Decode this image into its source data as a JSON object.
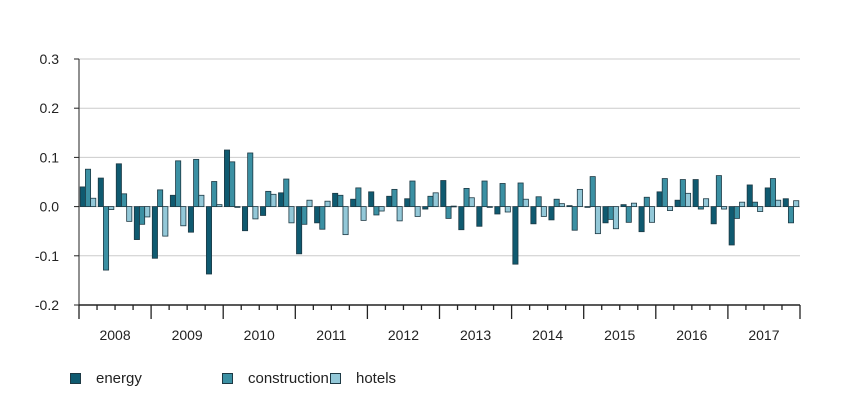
{
  "chart_data": {
    "type": "bar",
    "title": "",
    "xlabel": "",
    "ylabel": "",
    "ylim": [
      -0.2,
      0.3
    ],
    "yticks": [
      "0.3",
      "0.2",
      "0.1",
      "0.0",
      "-0.1",
      "-0.2"
    ],
    "ytick_values": [
      0.3,
      0.2,
      0.1,
      0.0,
      -0.1,
      -0.2
    ],
    "grid": "horizontal",
    "legend_position": "bottom-left",
    "year_labels": [
      "2008",
      "2009",
      "2010",
      "2011",
      "2012",
      "2013",
      "2014",
      "2015",
      "2016",
      "2017"
    ],
    "categories": [
      "2008 Q1",
      "2008 Q2",
      "2008 Q3",
      "2008 Q4",
      "2009 Q1",
      "2009 Q2",
      "2009 Q3",
      "2009 Q4",
      "2010 Q1",
      "2010 Q2",
      "2010 Q3",
      "2010 Q4",
      "2011 Q1",
      "2011 Q2",
      "2011 Q3",
      "2011 Q4",
      "2012 Q1",
      "2012 Q2",
      "2012 Q3",
      "2012 Q4",
      "2013 Q1",
      "2013 Q2",
      "2013 Q3",
      "2013 Q4",
      "2014 Q1",
      "2014 Q2",
      "2014 Q3",
      "2014 Q4",
      "2015 Q1",
      "2015 Q2",
      "2015 Q3",
      "2015 Q4",
      "2016 Q1",
      "2016 Q2",
      "2016 Q3",
      "2016 Q4",
      "2017 Q1",
      "2017 Q2",
      "2017 Q3",
      "2017 Q4"
    ],
    "series": [
      {
        "name": "energy",
        "color": "#0f5a70",
        "values": [
          0.04,
          0.058,
          0.087,
          -0.067,
          -0.105,
          0.023,
          -0.052,
          -0.137,
          0.115,
          -0.049,
          -0.018,
          0.028,
          -0.096,
          -0.033,
          0.027,
          0.015,
          0.03,
          0.021,
          0.016,
          -0.005,
          0.053,
          -0.047,
          -0.04,
          -0.015,
          -0.117,
          -0.035,
          -0.027,
          0.002,
          -0.001,
          -0.033,
          0.004,
          -0.051,
          0.03,
          0.013,
          0.055,
          -0.035,
          -0.078,
          0.044,
          0.038,
          0.016
        ]
      },
      {
        "name": "construction",
        "color": "#3b90a3",
        "values": [
          0.076,
          -0.129,
          0.026,
          -0.036,
          0.034,
          0.093,
          0.096,
          0.051,
          0.091,
          0.109,
          0.031,
          0.056,
          -0.036,
          -0.046,
          0.023,
          0.038,
          -0.017,
          0.035,
          0.052,
          0.021,
          -0.024,
          0.037,
          0.052,
          0.047,
          0.048,
          0.02,
          0.015,
          -0.048,
          0.061,
          -0.026,
          -0.032,
          0.019,
          0.057,
          0.055,
          -0.005,
          0.063,
          -0.024,
          0.009,
          0.057,
          -0.033
        ]
      },
      {
        "name": "hotels",
        "color": "#93c8d8",
        "values": [
          0.017,
          -0.006,
          -0.03,
          -0.021,
          -0.06,
          -0.039,
          0.023,
          0.004,
          0.0,
          -0.025,
          0.025,
          -0.033,
          0.013,
          0.011,
          -0.057,
          -0.028,
          -0.009,
          -0.029,
          -0.02,
          0.028,
          0.001,
          0.018,
          0.0,
          -0.011,
          0.015,
          -0.02,
          0.006,
          0.035,
          -0.055,
          -0.045,
          0.007,
          -0.032,
          -0.008,
          0.027,
          0.016,
          -0.005,
          0.009,
          -0.01,
          0.013,
          0.012
        ]
      }
    ]
  }
}
